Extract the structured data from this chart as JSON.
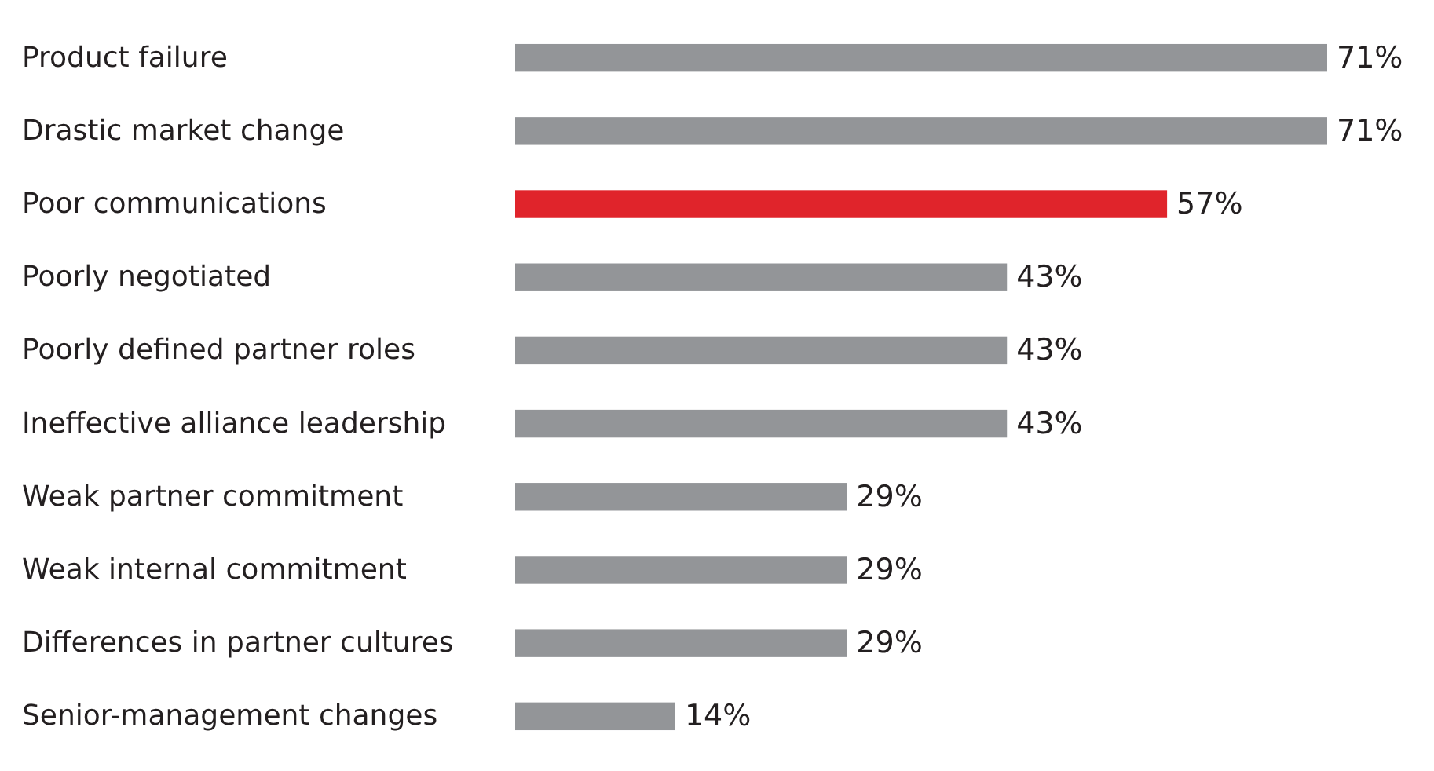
{
  "chart_data": {
    "type": "bar",
    "orientation": "horizontal",
    "categories": [
      "Product failure",
      "Drastic market change",
      "Poor communications",
      "Poorly negotiated",
      "Poorly defined partner roles",
      "Ineffective alliance leadership",
      "Weak partner commitment",
      "Weak internal commitment",
      "Differences in partner cultures",
      "Senior-management changes"
    ],
    "values": [
      71,
      71,
      57,
      43,
      43,
      43,
      29,
      29,
      29,
      14
    ],
    "value_labels": [
      "71%",
      "71%",
      "57%",
      "43%",
      "43%",
      "43%",
      "29%",
      "29%",
      "29%",
      "14%"
    ],
    "colors": [
      "#939598",
      "#939598",
      "#e0242b",
      "#939598",
      "#939598",
      "#939598",
      "#939598",
      "#939598",
      "#939598",
      "#939598"
    ]
  }
}
